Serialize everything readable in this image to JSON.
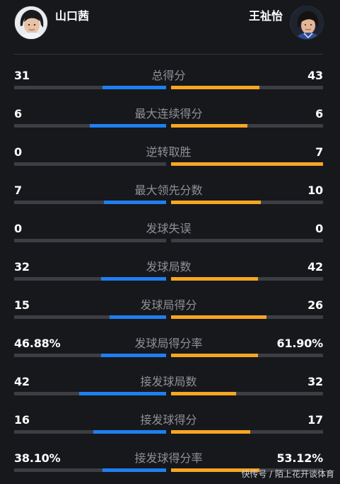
{
  "players": {
    "left": {
      "name": "山口茜",
      "side_color": "#1f7ff0"
    },
    "right": {
      "name": "王祉怡",
      "side_color": "#f6a623"
    }
  },
  "stats": [
    {
      "label": "总得分",
      "left": "31",
      "right": "43",
      "left_fill": 0.42,
      "right_fill": 0.58
    },
    {
      "label": "最大连续得分",
      "left": "6",
      "right": "6",
      "left_fill": 0.5,
      "right_fill": 0.5
    },
    {
      "label": "逆转取胜",
      "left": "0",
      "right": "7",
      "left_fill": 0.0,
      "right_fill": 1.0
    },
    {
      "label": "最大领先分数",
      "left": "7",
      "right": "10",
      "left_fill": 0.41,
      "right_fill": 0.59
    },
    {
      "label": "发球失误",
      "left": "0",
      "right": "0",
      "left_fill": 0.0,
      "right_fill": 0.0
    },
    {
      "label": "发球局数",
      "left": "32",
      "right": "42",
      "left_fill": 0.43,
      "right_fill": 0.57
    },
    {
      "label": "发球局得分",
      "left": "15",
      "right": "26",
      "left_fill": 0.37,
      "right_fill": 0.63
    },
    {
      "label": "发球局得分率",
      "left": "46.88%",
      "right": "61.90%",
      "left_fill": 0.43,
      "right_fill": 0.57
    },
    {
      "label": "接发球局数",
      "left": "42",
      "right": "32",
      "left_fill": 0.57,
      "right_fill": 0.43
    },
    {
      "label": "接发球得分",
      "left": "16",
      "right": "17",
      "left_fill": 0.48,
      "right_fill": 0.52
    },
    {
      "label": "接发球得分率",
      "left": "38.10%",
      "right": "53.12%",
      "left_fill": 0.42,
      "right_fill": 0.58
    }
  ],
  "watermark": "快传号 / 陌上花开谈体育"
}
